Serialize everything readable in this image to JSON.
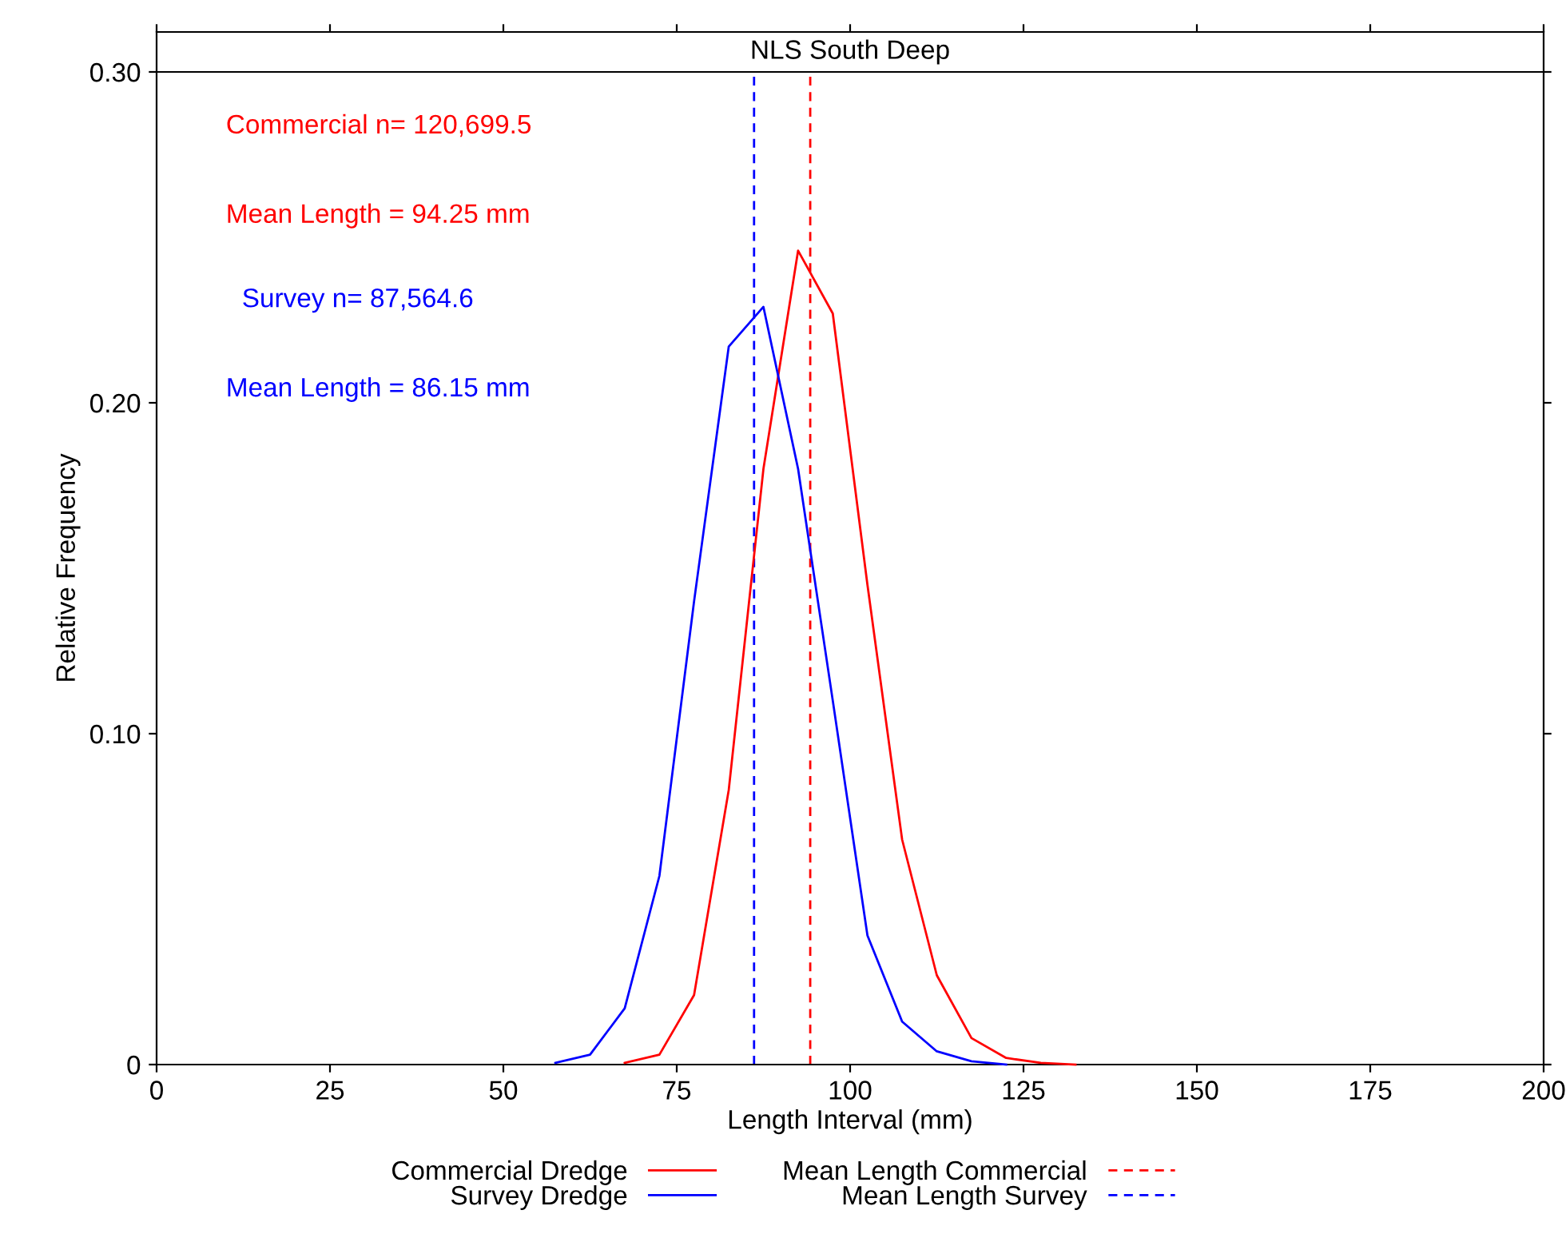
{
  "chart_data": {
    "type": "line",
    "title": "NLS South Deep",
    "xlabel": "Length Interval (mm)",
    "ylabel": "Relative Frequency",
    "annotations": [
      "Commercial n= 120,699.5",
      "Mean Length = 94.25 mm",
      "Survey n= 87,564.6",
      "Mean Length = 86.15 mm"
    ],
    "series": [
      {
        "name": "Commercial Dredge",
        "color": "#ff0000",
        "x": [
          67.5,
          72.5,
          77.5,
          82.5,
          87.5,
          92.5,
          97.5,
          102.5,
          107.5,
          112.5,
          117.5,
          122.5,
          127.5,
          132.5
        ],
        "values": [
          0.0005,
          0.003,
          0.021,
          0.083,
          0.18,
          0.246,
          0.227,
          0.145,
          0.068,
          0.027,
          0.008,
          0.002,
          0.0005,
          0
        ]
      },
      {
        "name": "Survey Dredge",
        "color": "#0000ff",
        "x": [
          57.5,
          62.5,
          67.5,
          72.5,
          77.5,
          82.5,
          87.5,
          92.5,
          97.5,
          102.5,
          107.5,
          112.5,
          117.5,
          122.5
        ],
        "values": [
          0.0005,
          0.003,
          0.017,
          0.057,
          0.14,
          0.217,
          0.229,
          0.18,
          0.11,
          0.039,
          0.013,
          0.004,
          0.001,
          0
        ]
      }
    ],
    "ref_lines": [
      {
        "axis": "x",
        "value": 94.25,
        "label": "Mean Length Commercial",
        "color": "#ff0000",
        "line_style": "dashed"
      },
      {
        "axis": "x",
        "value": 86.15,
        "label": "Mean Length Survey",
        "color": "#0000ff",
        "line_style": "dashed"
      }
    ],
    "xlim": [
      0,
      200
    ],
    "xticks": [
      0,
      25,
      50,
      75,
      100,
      125,
      150,
      175,
      200
    ],
    "ylim": [
      0,
      0.3
    ],
    "yticks": [
      {
        "value": 0,
        "label": "0"
      },
      {
        "value": 0.1,
        "label": "0.10"
      },
      {
        "value": 0.2,
        "label": "0.20"
      },
      {
        "value": 0.3,
        "label": "0.30"
      }
    ],
    "grid": false,
    "legend": "bottom",
    "marker": "none",
    "line_style": "solid"
  }
}
